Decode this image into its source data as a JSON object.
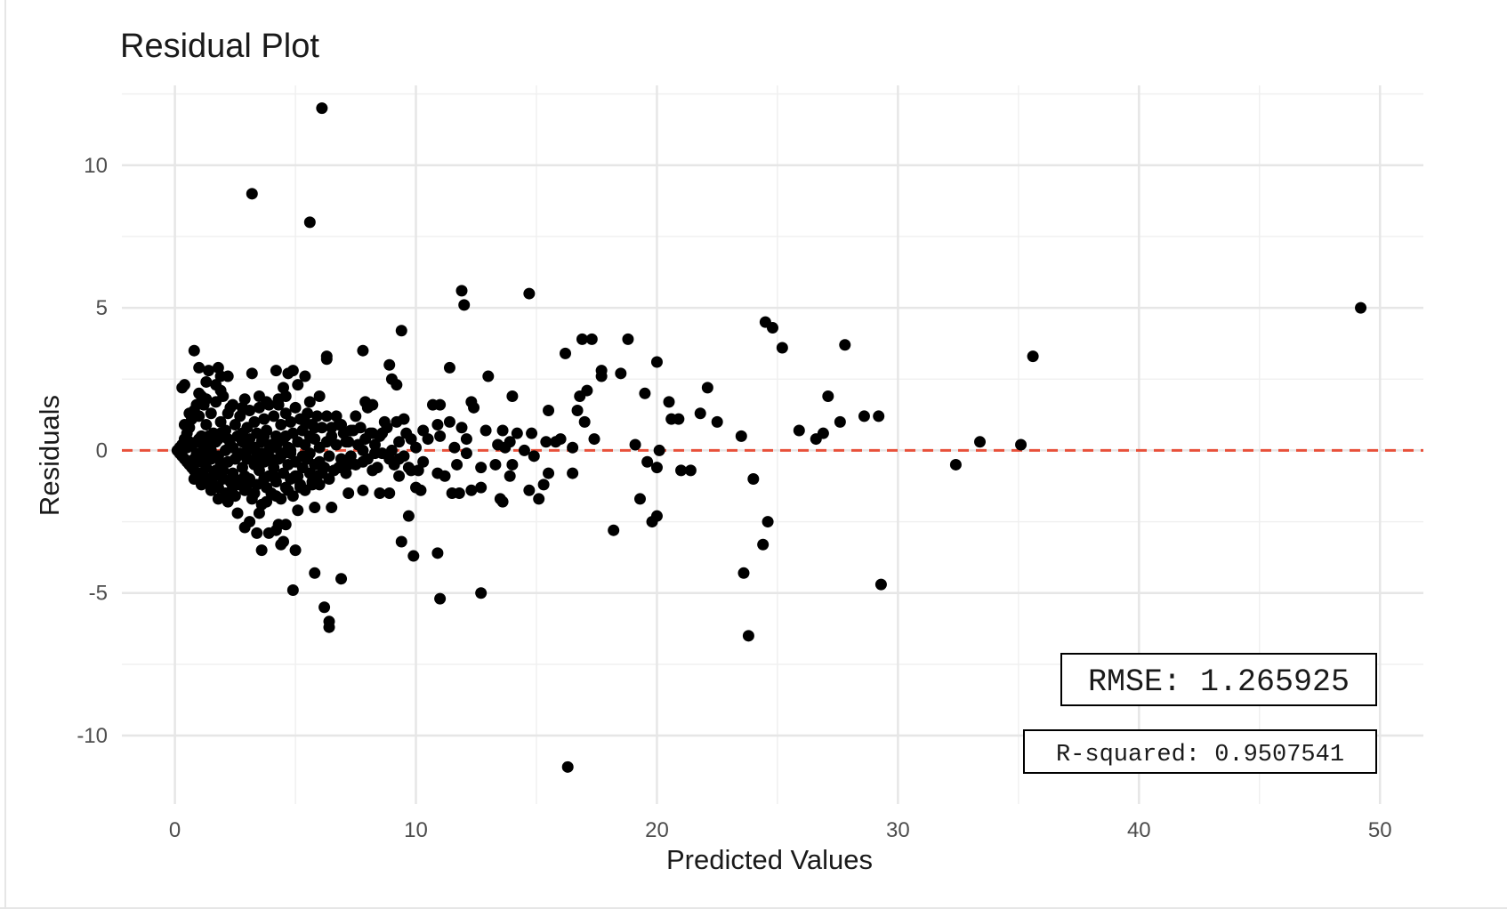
{
  "chart_data": {
    "type": "scatter",
    "title": "Residual Plot",
    "xlabel": "Predicted Values",
    "ylabel": "Residuals",
    "xlim": [
      -2.2,
      51.8
    ],
    "ylim": [
      -12.4,
      12.8
    ],
    "x_ticks": [
      0,
      10,
      20,
      30,
      40,
      50
    ],
    "x_tick_labels": [
      "0",
      "10",
      "20",
      "30",
      "40",
      "50"
    ],
    "y_ticks": [
      -10,
      -5,
      0,
      5,
      10
    ],
    "y_tick_labels": [
      "-10",
      "-5",
      "0",
      "5",
      "10"
    ],
    "grid": true,
    "reference_line": {
      "y": 0,
      "style": "dashed",
      "color": "#e8503a"
    },
    "point_color": "#000000",
    "annotations": [
      {
        "text": "RMSE: 1.265925",
        "position": "bottom-right"
      },
      {
        "text": "R-squared: 0.9507541",
        "position": "bottom-right"
      }
    ],
    "points": [
      [
        6.1,
        12.0
      ],
      [
        3.2,
        9.0
      ],
      [
        5.6,
        8.0
      ],
      [
        11.9,
        5.6
      ],
      [
        12.0,
        5.1
      ],
      [
        14.7,
        5.5
      ],
      [
        49.2,
        5.0
      ],
      [
        24.5,
        4.5
      ],
      [
        24.8,
        4.3
      ],
      [
        9.4,
        4.2
      ],
      [
        16.9,
        3.9
      ],
      [
        17.3,
        3.9
      ],
      [
        18.8,
        3.9
      ],
      [
        27.8,
        3.7
      ],
      [
        25.2,
        3.6
      ],
      [
        7.8,
        3.5
      ],
      [
        16.2,
        3.4
      ],
      [
        6.3,
        3.3
      ],
      [
        6.3,
        3.2
      ],
      [
        35.6,
        3.3
      ],
      [
        20.0,
        3.1
      ],
      [
        11.4,
        2.9
      ],
      [
        17.7,
        2.8
      ],
      [
        18.5,
        2.7
      ],
      [
        17.7,
        2.6
      ],
      [
        13.0,
        2.6
      ],
      [
        8.9,
        3.0
      ],
      [
        9.0,
        2.5
      ],
      [
        9.2,
        2.3
      ],
      [
        22.1,
        2.2
      ],
      [
        19.5,
        2.0
      ],
      [
        27.1,
        1.9
      ],
      [
        16.8,
        1.9
      ],
      [
        17.1,
        2.1
      ],
      [
        14.0,
        1.9
      ],
      [
        12.3,
        1.7
      ],
      [
        12.4,
        1.5
      ],
      [
        20.5,
        1.7
      ],
      [
        10.7,
        1.6
      ],
      [
        11.0,
        1.6
      ],
      [
        15.5,
        1.4
      ],
      [
        16.7,
        1.4
      ],
      [
        21.8,
        1.3
      ],
      [
        20.6,
        1.1
      ],
      [
        20.9,
        1.1
      ],
      [
        28.6,
        1.2
      ],
      [
        29.2,
        1.2
      ],
      [
        22.5,
        1.0
      ],
      [
        27.6,
        1.0
      ],
      [
        17.0,
        1.0
      ],
      [
        25.9,
        0.7
      ],
      [
        26.9,
        0.6
      ],
      [
        26.6,
        0.4
      ],
      [
        23.5,
        0.5
      ],
      [
        33.4,
        0.3
      ],
      [
        35.1,
        0.2
      ],
      [
        32.4,
        -0.5
      ],
      [
        19.1,
        0.2
      ],
      [
        17.4,
        0.4
      ],
      [
        16.0,
        0.4
      ],
      [
        16.5,
        0.1
      ],
      [
        20.1,
        0.0
      ],
      [
        21.0,
        -0.7
      ],
      [
        21.4,
        -0.7
      ],
      [
        19.6,
        -0.4
      ],
      [
        20.0,
        -0.6
      ],
      [
        24.0,
        -1.0
      ],
      [
        15.5,
        -0.8
      ],
      [
        16.5,
        -0.8
      ],
      [
        14.7,
        -1.4
      ],
      [
        15.1,
        -1.7
      ],
      [
        15.3,
        -1.2
      ],
      [
        13.5,
        -1.7
      ],
      [
        13.6,
        -1.8
      ],
      [
        12.7,
        -1.3
      ],
      [
        12.3,
        -1.4
      ],
      [
        11.5,
        -1.5
      ],
      [
        11.8,
        -1.5
      ],
      [
        10.2,
        -1.4
      ],
      [
        10.0,
        -1.3
      ],
      [
        19.3,
        -1.7
      ],
      [
        19.8,
        -2.5
      ],
      [
        20.0,
        -2.3
      ],
      [
        18.2,
        -2.8
      ],
      [
        24.6,
        -2.5
      ],
      [
        24.4,
        -3.3
      ],
      [
        23.6,
        -4.3
      ],
      [
        23.8,
        -6.5
      ],
      [
        29.3,
        -4.7
      ],
      [
        9.4,
        -3.2
      ],
      [
        9.9,
        -3.7
      ],
      [
        10.9,
        -3.6
      ],
      [
        11.0,
        -5.2
      ],
      [
        12.7,
        -5.0
      ],
      [
        9.7,
        -2.3
      ],
      [
        8.5,
        -1.5
      ],
      [
        8.9,
        -1.5
      ],
      [
        6.9,
        -4.5
      ],
      [
        5.8,
        -4.3
      ],
      [
        6.2,
        -5.5
      ],
      [
        6.4,
        -6.0
      ],
      [
        6.4,
        -6.2
      ],
      [
        4.9,
        -4.9
      ],
      [
        5.0,
        -3.5
      ],
      [
        4.4,
        -3.3
      ],
      [
        3.6,
        -3.5
      ],
      [
        3.4,
        -2.9
      ],
      [
        4.3,
        -2.6
      ],
      [
        4.6,
        -2.6
      ],
      [
        4.2,
        -2.8
      ],
      [
        5.1,
        -2.1
      ],
      [
        16.3,
        -11.1
      ],
      [
        0.3,
        2.2
      ],
      [
        0.4,
        2.3
      ],
      [
        0.8,
        3.5
      ],
      [
        1.0,
        2.9
      ],
      [
        1.4,
        2.8
      ],
      [
        1.8,
        2.9
      ],
      [
        1.9,
        2.6
      ],
      [
        2.2,
        2.6
      ],
      [
        1.7,
        2.3
      ],
      [
        1.9,
        2.1
      ],
      [
        3.2,
        2.7
      ],
      [
        4.2,
        2.8
      ],
      [
        4.7,
        2.7
      ],
      [
        4.9,
        2.8
      ],
      [
        5.4,
        2.6
      ],
      [
        4.5,
        2.2
      ],
      [
        5.1,
        2.3
      ],
      [
        1.3,
        2.4
      ],
      [
        1.0,
        2.0
      ],
      [
        1.3,
        1.8
      ],
      [
        2.3,
        1.5
      ],
      [
        2.8,
        1.5
      ],
      [
        3.5,
        1.9
      ],
      [
        3.8,
        1.7
      ],
      [
        4.3,
        1.6
      ],
      [
        4.6,
        1.9
      ],
      [
        5.6,
        1.7
      ],
      [
        6.0,
        1.9
      ],
      [
        7.9,
        1.7
      ],
      [
        8.2,
        1.6
      ],
      [
        7.5,
        1.2
      ],
      [
        6.7,
        1.2
      ],
      [
        8.0,
        1.5
      ],
      [
        8.7,
        1.0
      ],
      [
        9.2,
        1.0
      ],
      [
        9.5,
        1.1
      ],
      [
        10.3,
        0.7
      ],
      [
        11.4,
        1.0
      ],
      [
        11.9,
        0.8
      ],
      [
        12.9,
        0.7
      ],
      [
        13.6,
        0.7
      ],
      [
        14.2,
        0.6
      ],
      [
        13.4,
        0.2
      ],
      [
        13.9,
        0.3
      ],
      [
        14.8,
        0.6
      ],
      [
        15.4,
        0.3
      ],
      [
        15.8,
        0.3
      ],
      [
        12.1,
        0.4
      ],
      [
        10.5,
        0.4
      ],
      [
        10.9,
        0.9
      ],
      [
        11.0,
        0.5
      ],
      [
        9.8,
        0.4
      ],
      [
        8.6,
        0.6
      ],
      [
        8.2,
        0.6
      ],
      [
        7.3,
        0.7
      ],
      [
        6.9,
        0.9
      ],
      [
        6.5,
        0.8
      ],
      [
        5.8,
        0.8
      ],
      [
        5.4,
        1.0
      ],
      [
        6.3,
        1.2
      ],
      [
        7.1,
        0.3
      ],
      [
        11.6,
        0.1
      ],
      [
        12.1,
        -0.1
      ],
      [
        13.7,
        0.1
      ],
      [
        14.5,
        0.0
      ],
      [
        14.9,
        -0.2
      ],
      [
        10.1,
        -0.7
      ],
      [
        10.9,
        -0.8
      ],
      [
        11.7,
        -0.5
      ],
      [
        12.7,
        -0.6
      ],
      [
        13.3,
        -0.5
      ],
      [
        14.0,
        -0.5
      ],
      [
        13.9,
        -0.9
      ],
      [
        11.2,
        -0.9
      ],
      [
        10.3,
        -0.4
      ],
      [
        9.3,
        -0.3
      ],
      [
        8.9,
        -0.3
      ],
      [
        8.3,
        -0.1
      ],
      [
        7.8,
        -0.4
      ],
      [
        7.2,
        -0.5
      ],
      [
        6.8,
        -0.6
      ],
      [
        6.4,
        -1.0
      ],
      [
        6.0,
        -1.2
      ],
      [
        5.7,
        -1.2
      ],
      [
        5.2,
        -1.3
      ],
      [
        4.7,
        -1.4
      ],
      [
        4.2,
        -1.6
      ],
      [
        3.8,
        -1.8
      ],
      [
        3.5,
        -2.2
      ],
      [
        3.1,
        -2.5
      ],
      [
        2.9,
        -2.7
      ],
      [
        2.6,
        -2.2
      ],
      [
        2.2,
        -1.8
      ],
      [
        1.8,
        -1.7
      ],
      [
        1.5,
        -1.4
      ],
      [
        1.1,
        -1.2
      ],
      [
        0.8,
        -1.0
      ],
      [
        3.9,
        -2.9
      ],
      [
        4.5,
        -3.2
      ],
      [
        5.8,
        -2.0
      ],
      [
        6.5,
        -2.0
      ],
      [
        7.2,
        -1.5
      ],
      [
        7.8,
        -1.4
      ],
      [
        8.2,
        -0.7
      ],
      [
        9.3,
        -0.9
      ],
      [
        9.7,
        -0.6
      ],
      [
        6.1,
        -0.8
      ],
      [
        5.0,
        -0.9
      ],
      [
        3.0,
        -1.2
      ],
      [
        2.4,
        -1.3
      ],
      [
        0.1,
        0.0
      ],
      [
        0.2,
        0.1
      ],
      [
        0.2,
        -0.1
      ],
      [
        0.3,
        0.2
      ],
      [
        0.3,
        -0.2
      ],
      [
        0.4,
        0.4
      ],
      [
        0.4,
        -0.3
      ],
      [
        0.5,
        0.6
      ],
      [
        0.5,
        -0.4
      ],
      [
        0.6,
        0.8
      ],
      [
        0.6,
        -0.5
      ],
      [
        0.7,
        1.1
      ],
      [
        0.7,
        -0.6
      ],
      [
        0.8,
        1.4
      ],
      [
        0.8,
        -0.7
      ],
      [
        0.9,
        0.3
      ],
      [
        0.9,
        -0.2
      ],
      [
        1.0,
        1.2
      ],
      [
        1.0,
        -0.8
      ],
      [
        1.1,
        0.5
      ],
      [
        1.1,
        -0.4
      ],
      [
        1.2,
        1.6
      ],
      [
        1.2,
        -0.9
      ],
      [
        1.3,
        0.9
      ],
      [
        1.3,
        -0.6
      ],
      [
        1.4,
        0.2
      ],
      [
        1.4,
        -1.1
      ],
      [
        1.5,
        1.3
      ],
      [
        1.5,
        -0.3
      ],
      [
        1.6,
        0.6
      ],
      [
        1.6,
        -1.2
      ],
      [
        1.7,
        1.7
      ],
      [
        1.7,
        -0.7
      ],
      [
        1.8,
        0.4
      ],
      [
        1.8,
        -1.3
      ],
      [
        1.9,
        1.0
      ],
      [
        1.9,
        -0.5
      ],
      [
        2.0,
        1.9
      ],
      [
        2.0,
        -1.0
      ],
      [
        2.1,
        0.7
      ],
      [
        2.1,
        -1.5
      ],
      [
        2.2,
        1.3
      ],
      [
        2.2,
        -0.4
      ],
      [
        2.3,
        0.2
      ],
      [
        2.3,
        -1.1
      ],
      [
        2.4,
        1.6
      ],
      [
        2.4,
        -0.8
      ],
      [
        2.5,
        0.9
      ],
      [
        2.5,
        -1.6
      ],
      [
        2.6,
        0.5
      ],
      [
        2.6,
        -0.2
      ],
      [
        2.7,
        1.2
      ],
      [
        2.7,
        -1.2
      ],
      [
        2.8,
        0.3
      ],
      [
        2.8,
        -0.6
      ],
      [
        2.9,
        1.8
      ],
      [
        2.9,
        -1.4
      ],
      [
        3.0,
        0.8
      ],
      [
        3.0,
        -0.3
      ],
      [
        3.1,
        1.4
      ],
      [
        3.1,
        -1.0
      ],
      [
        3.2,
        0.1
      ],
      [
        3.2,
        -1.7
      ],
      [
        3.3,
        1.0
      ],
      [
        3.3,
        -0.5
      ],
      [
        3.4,
        0.6
      ],
      [
        3.4,
        -1.2
      ],
      [
        3.5,
        1.5
      ],
      [
        3.5,
        -0.7
      ],
      [
        3.6,
        0.3
      ],
      [
        3.6,
        -1.9
      ],
      [
        3.7,
        1.1
      ],
      [
        3.7,
        -0.4
      ],
      [
        3.8,
        0.7
      ],
      [
        3.8,
        -1.3
      ],
      [
        3.9,
        1.6
      ],
      [
        3.9,
        -0.9
      ],
      [
        4.0,
        0.2
      ],
      [
        4.0,
        -1.5
      ],
      [
        4.1,
        1.2
      ],
      [
        4.1,
        -0.6
      ],
      [
        4.2,
        0.5
      ],
      [
        4.2,
        -1.1
      ],
      [
        4.3,
        1.8
      ],
      [
        4.3,
        -0.3
      ],
      [
        4.4,
        0.9
      ],
      [
        4.4,
        -1.7
      ],
      [
        4.5,
        0.4
      ],
      [
        4.5,
        -0.8
      ],
      [
        4.6,
        1.3
      ],
      [
        4.6,
        -1.3
      ],
      [
        4.7,
        0.1
      ],
      [
        4.7,
        -0.5
      ],
      [
        4.8,
        1.0
      ],
      [
        4.8,
        -1.0
      ],
      [
        4.9,
        0.6
      ],
      [
        4.9,
        -1.6
      ],
      [
        5.0,
        1.5
      ],
      [
        5.0,
        -0.4
      ],
      [
        5.1,
        0.3
      ],
      [
        5.1,
        -0.9
      ],
      [
        5.2,
        1.1
      ],
      [
        5.2,
        -1.2
      ],
      [
        5.3,
        0.7
      ],
      [
        5.3,
        -0.6
      ],
      [
        5.4,
        0.2
      ],
      [
        5.4,
        -1.4
      ],
      [
        5.5,
        1.3
      ],
      [
        5.5,
        -0.3
      ],
      [
        5.6,
        0.5
      ],
      [
        5.6,
        -0.8
      ],
      [
        5.7,
        0.9
      ],
      [
        5.7,
        -1.1
      ],
      [
        5.8,
        0.4
      ],
      [
        5.8,
        -0.5
      ],
      [
        5.9,
        1.2
      ],
      [
        5.9,
        -0.9
      ],
      [
        6.0,
        0.1
      ],
      [
        6.0,
        -0.4
      ],
      [
        6.1,
        0.8
      ],
      [
        6.2,
        -0.6
      ],
      [
        6.3,
        0.3
      ],
      [
        6.4,
        -0.2
      ],
      [
        6.5,
        0.5
      ],
      [
        6.6,
        -0.7
      ],
      [
        6.7,
        0.2
      ],
      [
        6.8,
        0.9
      ],
      [
        6.9,
        -0.3
      ],
      [
        7.0,
        0.6
      ],
      [
        7.1,
        -0.8
      ],
      [
        7.2,
        0.3
      ],
      [
        7.3,
        -0.2
      ],
      [
        7.4,
        0.7
      ],
      [
        7.5,
        -0.5
      ],
      [
        7.6,
        0.2
      ],
      [
        7.7,
        0.8
      ],
      [
        7.8,
        0.0
      ],
      [
        7.9,
        0.4
      ],
      [
        8.0,
        -0.3
      ],
      [
        8.1,
        0.6
      ],
      [
        8.3,
        0.2
      ],
      [
        8.4,
        -0.6
      ],
      [
        8.5,
        0.5
      ],
      [
        8.6,
        -0.1
      ],
      [
        8.8,
        0.8
      ],
      [
        9.0,
        0.0
      ],
      [
        9.1,
        -0.5
      ],
      [
        9.3,
        0.3
      ],
      [
        9.5,
        -0.2
      ],
      [
        9.6,
        0.6
      ],
      [
        9.8,
        -0.7
      ],
      [
        10.0,
        0.1
      ],
      [
        0.4,
        0.9
      ],
      [
        0.6,
        1.3
      ],
      [
        0.9,
        1.6
      ],
      [
        1.1,
        1.9
      ],
      [
        1.3,
        -1.0
      ],
      [
        1.6,
        -0.9
      ],
      [
        2.0,
        -0.7
      ],
      [
        2.5,
        -1.0
      ],
      [
        2.9,
        -0.9
      ],
      [
        3.3,
        -1.5
      ],
      [
        3.7,
        -1.0
      ],
      [
        4.1,
        -0.9
      ],
      [
        4.4,
        -0.2
      ],
      [
        4.8,
        -0.1
      ],
      [
        5.3,
        -0.2
      ],
      [
        5.6,
        -0.1
      ],
      [
        0.5,
        0.1
      ],
      [
        0.7,
        0.2
      ],
      [
        0.9,
        -0.1
      ],
      [
        1.2,
        0.1
      ],
      [
        1.5,
        0.0
      ],
      [
        1.8,
        -0.2
      ],
      [
        2.1,
        0.0
      ],
      [
        2.4,
        0.1
      ],
      [
        2.7,
        -0.1
      ],
      [
        3.0,
        0.0
      ],
      [
        3.3,
        0.1
      ],
      [
        3.6,
        -0.1
      ],
      [
        3.9,
        0.0
      ],
      [
        4.2,
        0.1
      ],
      [
        4.5,
        -0.1
      ],
      [
        4.8,
        0.0
      ],
      [
        0.6,
        0.3
      ],
      [
        0.8,
        -0.3
      ],
      [
        1.0,
        0.4
      ],
      [
        1.2,
        -0.2
      ],
      [
        1.4,
        0.5
      ],
      [
        1.7,
        0.3
      ],
      [
        1.9,
        0.6
      ],
      [
        2.2,
        0.4
      ],
      [
        2.5,
        -0.3
      ],
      [
        2.8,
        0.6
      ],
      [
        3.1,
        0.4
      ],
      [
        3.4,
        -0.2
      ],
      [
        3.7,
        0.5
      ],
      [
        4.0,
        -0.3
      ],
      [
        4.3,
        0.3
      ],
      [
        4.6,
        0.5
      ]
    ]
  }
}
